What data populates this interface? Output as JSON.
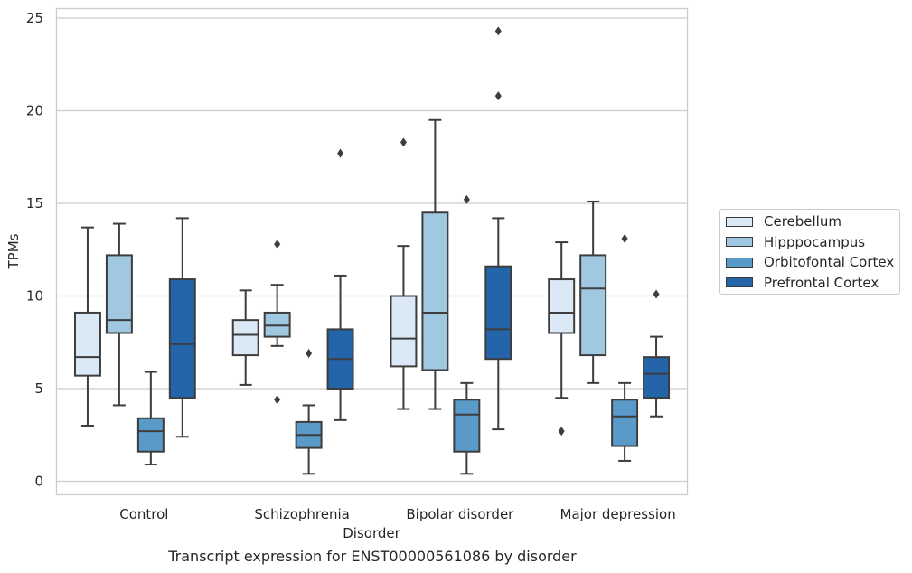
{
  "chart_data": {
    "type": "box",
    "title": "",
    "caption": "Transcript expression for ENST00000561086 by disorder",
    "xlabel": "Disorder",
    "ylabel": "TPMs",
    "ylim": [
      -0.7,
      25.5
    ],
    "yticks": [
      0,
      5,
      10,
      15,
      20,
      25
    ],
    "grid": "horizontal",
    "legend_position": "right",
    "categories": [
      "Control",
      "Schizophrenia",
      "Bipolar disorder",
      "Major depression"
    ],
    "series": [
      {
        "name": "Cerebellum",
        "color": "#dbe9f6",
        "boxes": [
          {
            "whisker_low": 3.0,
            "q1": 5.7,
            "median": 6.7,
            "q3": 9.1,
            "whisker_high": 13.7,
            "outliers": []
          },
          {
            "whisker_low": 5.2,
            "q1": 6.8,
            "median": 7.9,
            "q3": 8.7,
            "whisker_high": 10.3,
            "outliers": []
          },
          {
            "whisker_low": 3.9,
            "q1": 6.2,
            "median": 7.7,
            "q3": 10.0,
            "whisker_high": 12.7,
            "outliers": [
              18.3
            ]
          },
          {
            "whisker_low": 4.5,
            "q1": 8.0,
            "median": 9.1,
            "q3": 10.9,
            "whisker_high": 12.9,
            "outliers": [
              2.7
            ]
          }
        ]
      },
      {
        "name": "Hipppocampus",
        "color": "#a0c8e0",
        "boxes": [
          {
            "whisker_low": 4.1,
            "q1": 8.0,
            "median": 8.7,
            "q3": 12.2,
            "whisker_high": 13.9,
            "outliers": []
          },
          {
            "whisker_low": 7.3,
            "q1": 7.8,
            "median": 8.4,
            "q3": 9.1,
            "whisker_high": 10.6,
            "outliers": [
              12.8,
              4.4
            ]
          },
          {
            "whisker_low": 3.9,
            "q1": 6.0,
            "median": 9.1,
            "q3": 14.5,
            "whisker_high": 19.5,
            "outliers": []
          },
          {
            "whisker_low": 5.3,
            "q1": 6.8,
            "median": 10.4,
            "q3": 12.2,
            "whisker_high": 15.1,
            "outliers": []
          }
        ]
      },
      {
        "name": "Orbitofontal Cortex",
        "color": "#5a9ac8",
        "boxes": [
          {
            "whisker_low": 0.9,
            "q1": 1.6,
            "median": 2.7,
            "q3": 3.4,
            "whisker_high": 5.9,
            "outliers": []
          },
          {
            "whisker_low": 0.4,
            "q1": 1.8,
            "median": 2.5,
            "q3": 3.2,
            "whisker_high": 4.1,
            "outliers": [
              6.9
            ]
          },
          {
            "whisker_low": 0.4,
            "q1": 1.6,
            "median": 3.6,
            "q3": 4.4,
            "whisker_high": 5.3,
            "outliers": [
              15.2
            ]
          },
          {
            "whisker_low": 1.1,
            "q1": 1.9,
            "median": 3.5,
            "q3": 4.4,
            "whisker_high": 5.3,
            "outliers": [
              13.1
            ]
          }
        ]
      },
      {
        "name": "Prefrontal Cortex",
        "color": "#2365a8",
        "boxes": [
          {
            "whisker_low": 2.4,
            "q1": 4.5,
            "median": 7.4,
            "q3": 10.9,
            "whisker_high": 14.2,
            "outliers": []
          },
          {
            "whisker_low": 3.3,
            "q1": 5.0,
            "median": 6.6,
            "q3": 8.2,
            "whisker_high": 11.1,
            "outliers": [
              17.7
            ]
          },
          {
            "whisker_low": 2.8,
            "q1": 6.6,
            "median": 8.2,
            "q3": 11.6,
            "whisker_high": 14.2,
            "outliers": [
              24.3,
              20.8
            ]
          },
          {
            "whisker_low": 3.5,
            "q1": 4.5,
            "median": 5.8,
            "q3": 6.7,
            "whisker_high": 7.8,
            "outliers": [
              10.1
            ]
          }
        ]
      }
    ]
  }
}
